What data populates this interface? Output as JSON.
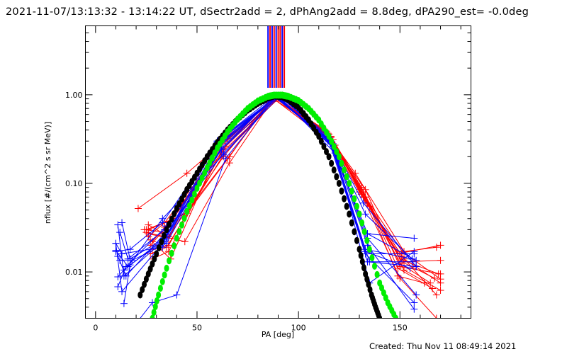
{
  "chart_data": {
    "type": "line",
    "title": "2021-11-07/13:13:32 - 13:14:22 UT, dSectr2add = 2, dPhAng2add = 8.8deg, dPA290_est= -0.0deg",
    "xlabel": "PA [deg]",
    "ylabel": "nflux [#/(cm^2 s sr MeV)]",
    "xlim": [
      -5,
      185
    ],
    "ylim": [
      0.003,
      6.0
    ],
    "yscale": "log",
    "x_ticks": [
      0,
      50,
      100,
      150
    ],
    "x_tick_labels": [
      "0",
      "50",
      "100",
      "150"
    ],
    "y_ticks": [
      0.01,
      0.1,
      1.0
    ],
    "y_tick_labels": [
      "0.01",
      "0.10",
      "1.00"
    ],
    "grid": false,
    "footer": "Created: Thu Nov 11 08:49:14 2021",
    "colors": {
      "red": "#ff0000",
      "blue": "#0000ff",
      "black": "#000000",
      "green": "#00ee00"
    },
    "vertical_markers": {
      "x": [
        85,
        86,
        87,
        88,
        89,
        90,
        91,
        92,
        93
      ],
      "colors": [
        "blue",
        "red",
        "blue",
        "red",
        "blue",
        "red",
        "red",
        "blue",
        "red"
      ],
      "y_range": [
        1.2,
        6.0
      ]
    },
    "model_curves": [
      {
        "name": "black-fit",
        "color": "black",
        "x": [
          22,
          26,
          30,
          35,
          40,
          45,
          50,
          55,
          60,
          65,
          70,
          75,
          80,
          85,
          88,
          92,
          95,
          100,
          105,
          110,
          115,
          120,
          125,
          130,
          133,
          136,
          138,
          140
        ],
        "y": [
          0.0055,
          0.0095,
          0.016,
          0.03,
          0.052,
          0.085,
          0.13,
          0.2,
          0.29,
          0.4,
          0.53,
          0.67,
          0.8,
          0.92,
          0.97,
          0.95,
          0.88,
          0.72,
          0.52,
          0.34,
          0.2,
          0.1,
          0.045,
          0.018,
          0.0095,
          0.0055,
          0.004,
          0.003
        ]
      },
      {
        "name": "green-fit",
        "color": "green",
        "x": [
          28,
          31,
          35,
          40,
          45,
          50,
          55,
          60,
          65,
          70,
          75,
          80,
          85,
          88,
          92,
          95,
          100,
          105,
          110,
          115,
          120,
          125,
          130,
          135,
          140,
          144,
          148
        ],
        "y": [
          0.003,
          0.0055,
          0.011,
          0.024,
          0.048,
          0.088,
          0.15,
          0.25,
          0.38,
          0.53,
          0.7,
          0.85,
          0.96,
          0.99,
          0.99,
          0.96,
          0.86,
          0.7,
          0.52,
          0.34,
          0.2,
          0.1,
          0.045,
          0.018,
          0.0075,
          0.0045,
          0.003
        ]
      }
    ],
    "series": [
      {
        "name": "r1",
        "color": "red",
        "x": [
          21,
          45,
          65,
          88,
          112,
          128,
          152,
          168
        ],
        "y": [
          0.052,
          0.13,
          0.32,
          0.92,
          0.42,
          0.13,
          0.017,
          0.019
        ]
      },
      {
        "name": "r2",
        "color": "red",
        "x": [
          26,
          45,
          66,
          87,
          113,
          129,
          149,
          170
        ],
        "y": [
          0.03,
          0.046,
          0.2,
          0.96,
          0.4,
          0.1,
          0.016,
          0.02
        ]
      },
      {
        "name": "r3",
        "color": "red",
        "x": [
          25,
          44,
          66,
          88,
          115,
          130,
          151,
          167
        ],
        "y": [
          0.028,
          0.022,
          0.17,
          0.93,
          0.36,
          0.085,
          0.013,
          0.0085
        ]
      },
      {
        "name": "r4",
        "color": "red",
        "x": [
          26,
          34,
          62,
          87,
          116,
          131,
          150,
          165
        ],
        "y": [
          0.025,
          0.036,
          0.24,
          0.92,
          0.34,
          0.09,
          0.0125,
          0.0075
        ]
      },
      {
        "name": "r5",
        "color": "red",
        "x": [
          24,
          34,
          61,
          89,
          114,
          130,
          152,
          170
        ],
        "y": [
          0.03,
          0.028,
          0.27,
          0.95,
          0.36,
          0.08,
          0.013,
          0.0135
        ]
      },
      {
        "name": "r6",
        "color": "red",
        "x": [
          27,
          35,
          62,
          90,
          116,
          133,
          150,
          169
        ],
        "y": [
          0.02,
          0.032,
          0.22,
          0.9,
          0.3,
          0.07,
          0.014,
          0.0095
        ]
      },
      {
        "name": "r7",
        "color": "red",
        "x": [
          26,
          36,
          63,
          88,
          117,
          132,
          152,
          170
        ],
        "y": [
          0.034,
          0.025,
          0.2,
          0.96,
          0.31,
          0.07,
          0.0105,
          0.0062
        ]
      },
      {
        "name": "r8",
        "color": "red",
        "x": [
          28,
          36,
          64,
          89,
          115,
          132,
          149,
          162
        ],
        "y": [
          0.018,
          0.02,
          0.26,
          0.94,
          0.33,
          0.08,
          0.009,
          0.0075
        ]
      },
      {
        "name": "r9",
        "color": "red",
        "x": [
          27,
          35,
          63,
          90,
          116,
          133,
          150,
          170
        ],
        "y": [
          0.016,
          0.019,
          0.21,
          0.92,
          0.3,
          0.085,
          0.0115,
          0.0095
        ]
      },
      {
        "name": "r10",
        "color": "red",
        "x": [
          28,
          36,
          62,
          87,
          117,
          134,
          151,
          168
        ],
        "y": [
          0.014,
          0.017,
          0.23,
          0.93,
          0.28,
          0.06,
          0.015,
          0.0055
        ]
      },
      {
        "name": "r11",
        "color": "red",
        "x": [
          27,
          37,
          61,
          88,
          114,
          131,
          149,
          166
        ],
        "y": [
          0.023,
          0.014,
          0.25,
          0.95,
          0.38,
          0.09,
          0.011,
          0.0065
        ]
      },
      {
        "name": "r12",
        "color": "red",
        "x": [
          26,
          36,
          60,
          89,
          118,
          135,
          152,
          170
        ],
        "y": [
          0.027,
          0.024,
          0.28,
          0.91,
          0.27,
          0.055,
          0.014,
          0.0075
        ]
      },
      {
        "name": "r13",
        "color": "red",
        "x": [
          25,
          44,
          65,
          88,
          116,
          131,
          150,
          168
        ],
        "y": [
          0.03,
          0.045,
          0.19,
          0.97,
          0.33,
          0.075,
          0.0085,
          0.003
        ]
      },
      {
        "name": "r14",
        "color": "red",
        "x": [
          28,
          34,
          62,
          90,
          115,
          133,
          151,
          170
        ],
        "y": [
          0.022,
          0.032,
          0.24,
          0.93,
          0.34,
          0.07,
          0.017,
          0.0083
        ]
      },
      {
        "name": "b1",
        "color": "blue",
        "x": [
          10,
          13,
          33,
          60,
          90,
          118,
          134,
          157
        ],
        "y": [
          0.021,
          0.006,
          0.021,
          0.3,
          0.98,
          0.22,
          0.027,
          0.024
        ]
      },
      {
        "name": "b2",
        "color": "blue",
        "x": [
          11,
          14,
          33,
          61,
          89,
          117,
          136,
          157
        ],
        "y": [
          0.034,
          0.009,
          0.022,
          0.27,
          0.97,
          0.28,
          0.016,
          0.016
        ]
      },
      {
        "name": "b3",
        "color": "blue",
        "x": [
          12,
          16,
          34,
          62,
          88,
          116,
          135,
          156
        ],
        "y": [
          0.028,
          0.014,
          0.03,
          0.24,
          0.96,
          0.3,
          0.013,
          0.013
        ]
      },
      {
        "name": "b4",
        "color": "blue",
        "x": [
          10,
          17,
          33,
          60,
          90,
          115,
          132,
          158
        ],
        "y": [
          0.017,
          0.018,
          0.036,
          0.29,
          0.98,
          0.33,
          0.06,
          0.0115
        ]
      },
      {
        "name": "b5",
        "color": "blue",
        "x": [
          11,
          15,
          34,
          63,
          91,
          116,
          133,
          156
        ],
        "y": [
          0.015,
          0.009,
          0.027,
          0.22,
          0.97,
          0.29,
          0.045,
          0.014
        ]
      },
      {
        "name": "b6",
        "color": "blue",
        "x": [
          12,
          18,
          35,
          61,
          89,
          117,
          134,
          158
        ],
        "y": [
          0.0135,
          0.0135,
          0.021,
          0.26,
          0.95,
          0.27,
          0.024,
          0.0055
        ]
      },
      {
        "name": "b7",
        "color": "blue",
        "x": [
          13,
          17,
          34,
          62,
          88,
          115,
          133,
          157
        ],
        "y": [
          0.036,
          0.014,
          0.024,
          0.25,
          0.96,
          0.3,
          0.016,
          0.0045
        ]
      },
      {
        "name": "b8",
        "color": "blue",
        "x": [
          10,
          16,
          33,
          63,
          90,
          114,
          134,
          158
        ],
        "y": [
          0.0175,
          0.0115,
          0.04,
          0.21,
          0.98,
          0.36,
          0.027,
          0.0135
        ]
      },
      {
        "name": "b9",
        "color": "blue",
        "x": [
          11,
          14,
          35,
          60,
          89,
          116,
          133,
          156
        ],
        "y": [
          0.0088,
          0.0105,
          0.025,
          0.27,
          0.97,
          0.28,
          0.018,
          0.014
        ]
      },
      {
        "name": "b10",
        "color": "blue",
        "x": [
          14,
          17,
          34,
          62,
          90,
          118,
          135,
          157
        ],
        "y": [
          0.0044,
          0.012,
          0.023,
          0.24,
          0.95,
          0.24,
          0.0075,
          0.017
        ]
      },
      {
        "name": "b11",
        "color": "blue",
        "x": [
          10,
          13,
          33,
          61,
          91,
          116,
          134,
          158
        ],
        "y": [
          0.021,
          0.016,
          0.019,
          0.28,
          0.98,
          0.3,
          0.013,
          0.0115
        ]
      },
      {
        "name": "b12",
        "color": "blue",
        "x": [
          11,
          15,
          35,
          60,
          88,
          115,
          133,
          155
        ],
        "y": [
          0.0068,
          0.0115,
          0.033,
          0.3,
          0.96,
          0.32,
          0.017,
          0.011
        ]
      },
      {
        "name": "b13",
        "color": "blue",
        "x": [
          16,
          28,
          40,
          64,
          89,
          117,
          134,
          157
        ],
        "y": [
          0.002,
          0.0045,
          0.0055,
          0.19,
          0.97,
          0.26,
          0.02,
          0.0038
        ]
      }
    ]
  }
}
